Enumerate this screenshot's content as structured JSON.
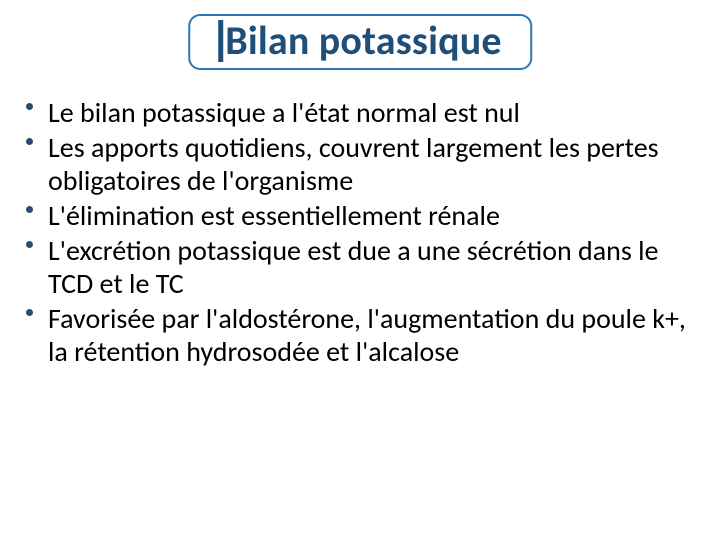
{
  "slide": {
    "title": "Bilan potassique",
    "title_style": {
      "color": "#1f4e79",
      "fontsize": 40,
      "weight": 700,
      "border_color": "#2e75b6",
      "bar_color": "#1f4e79"
    },
    "bullet_style": {
      "fontsize": 28,
      "color": "#000000",
      "dot_color": "#1f4e79"
    },
    "bullets": [
      "Le bilan potassique a l'état normal est nul",
      "Les apports quotidiens, couvrent largement les pertes obligatoires de l'organisme",
      "L'élimination est essentiellement rénale",
      "L'excrétion potassique est due a une sécrétion dans le TCD et le TC",
      "Favorisée par l'aldostérone, l'augmentation du poule k+, la rétention hydrosodée et l'alcalose"
    ],
    "background_color": "#ffffff"
  }
}
